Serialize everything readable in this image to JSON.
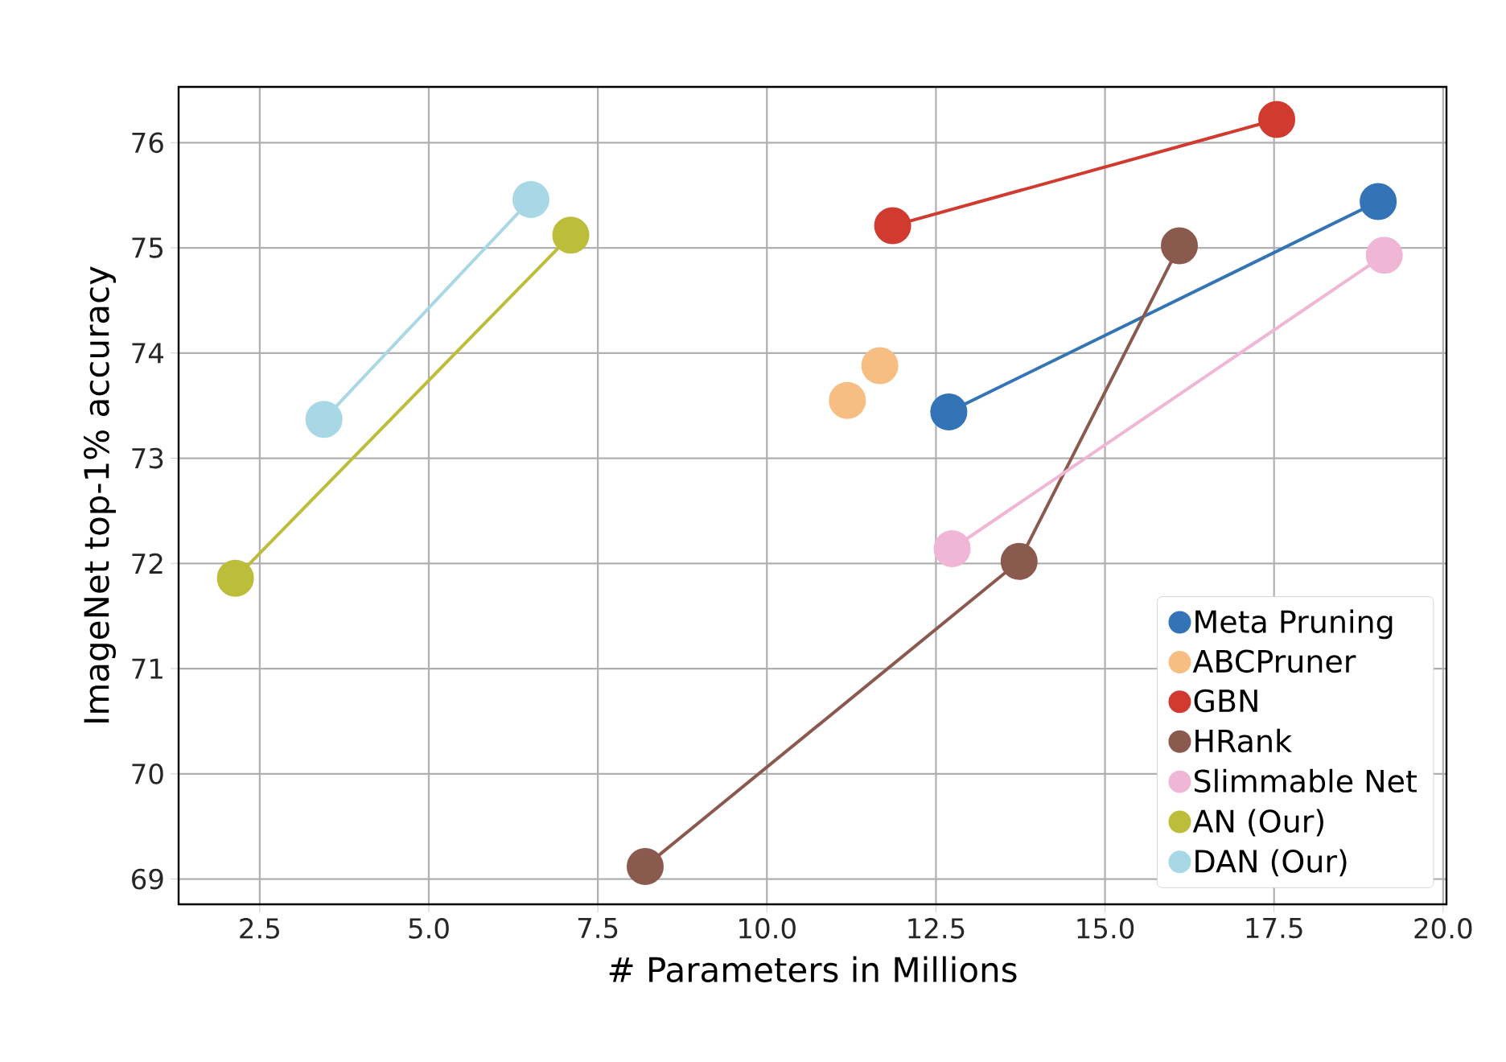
{
  "chart_data": {
    "type": "line",
    "xlabel": "# Parameters in Millions",
    "ylabel": "ImageNet top-1% accuracy",
    "xlim": [
      1.3,
      20.05
    ],
    "ylim": [
      68.76,
      76.53
    ],
    "xticks": [
      2.5,
      {
        "value": 5,
        "label": "5.0"
      },
      7.5,
      {
        "value": 10,
        "label": "10.0"
      },
      12.5,
      {
        "value": 15,
        "label": "15.0"
      },
      17.5,
      {
        "value": 20,
        "label": "20.0"
      }
    ],
    "yticks": [
      69,
      70,
      71,
      72,
      73,
      74,
      75,
      76
    ],
    "grid": true,
    "legend": "bottom right",
    "marker": "circle",
    "series": [
      {
        "name": "Meta Pruning",
        "color": "#3274b5",
        "x": [
          12.69,
          19.04
        ],
        "values": [
          73.44,
          75.44
        ]
      },
      {
        "name": "ABCPruner",
        "type": "scatter",
        "color": "#f6be82",
        "x": [
          11.19,
          11.67
        ],
        "values": [
          73.55,
          73.88
        ]
      },
      {
        "name": "GBN",
        "color": "#d03a2f",
        "x": [
          11.86,
          17.54
        ],
        "values": [
          75.21,
          76.22
        ]
      },
      {
        "name": "HRank",
        "color": "#8b5a4f",
        "x": [
          8.2,
          13.73,
          16.1
        ],
        "values": [
          69.12,
          72.02,
          75.02
        ]
      },
      {
        "name": "Slimmable Net",
        "color": "#efb6d6",
        "x": [
          12.74,
          19.13
        ],
        "values": [
          72.14,
          74.93
        ]
      },
      {
        "name": "AN (Our)",
        "color": "#bcbd3a",
        "x": [
          2.14,
          7.1
        ],
        "values": [
          71.86,
          75.12
        ]
      },
      {
        "name": "DAN (Our)",
        "color": "#a8d8e5",
        "x": [
          3.45,
          6.51
        ],
        "values": [
          73.37,
          75.46
        ]
      }
    ]
  }
}
